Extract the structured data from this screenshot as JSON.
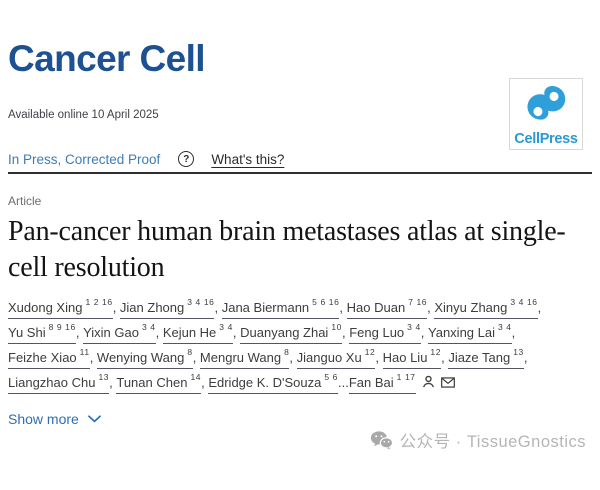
{
  "masthead": {
    "journal_title": "Cancer Cell",
    "available_online": "Available online 10 April 2025",
    "publisher": {
      "name": "CellPress"
    }
  },
  "status_bar": {
    "status": "In Press, Corrected Proof",
    "help_icon_glyph": "?",
    "help_link": "What's this?"
  },
  "article": {
    "type_label": "Article",
    "title": "Pan-cancer human brain metastases atlas at single-cell resolution",
    "show_more": "Show more"
  },
  "authors": {
    "lines": [
      [
        {
          "name": "Xudong Xing",
          "sup": "1 2 16",
          "sep": ", "
        },
        {
          "name": "Jian Zhong",
          "sup": "3 4 16",
          "sep": ", "
        },
        {
          "name": "Jana Biermann",
          "sup": "5 6 16",
          "sep": ", "
        },
        {
          "name": "Hao Duan",
          "sup": "7 16",
          "sep": ", "
        },
        {
          "name": "Xinyu Zhang",
          "sup": "3 4 16",
          "sep": ","
        }
      ],
      [
        {
          "name": "Yu Shi",
          "sup": "8 9 16",
          "sep": ", "
        },
        {
          "name": "Yixin Gao",
          "sup": "3 4",
          "sep": ", "
        },
        {
          "name": "Kejun He",
          "sup": "3 4",
          "sep": ", "
        },
        {
          "name": "Duanyang Zhai",
          "sup": "10",
          "sep": ", "
        },
        {
          "name": "Feng Luo",
          "sup": "3 4",
          "sep": ", "
        },
        {
          "name": "Yanxing Lai",
          "sup": "3 4",
          "sep": ","
        }
      ],
      [
        {
          "name": "Feizhe Xiao",
          "sup": "11",
          "sep": ", "
        },
        {
          "name": "Wenying Wang",
          "sup": "8",
          "sep": ", "
        },
        {
          "name": "Mengru Wang",
          "sup": "8",
          "sep": ", "
        },
        {
          "name": "Jianguo Xu",
          "sup": "12",
          "sep": ", "
        },
        {
          "name": "Hao Liu",
          "sup": "12",
          "sep": ", "
        },
        {
          "name": "Jiaze Tang",
          "sup": "13",
          "sep": ","
        }
      ],
      [
        {
          "name": "Liangzhao Chu",
          "sup": "13",
          "sep": ", "
        },
        {
          "name": "Tunan Chen",
          "sup": "14",
          "sep": ", "
        },
        {
          "name": "Edridge K. D'Souza",
          "sup": "5 6",
          "sep": "..."
        },
        {
          "name": "Fan Bai",
          "sup": "1 17",
          "sep": "",
          "icons": [
            "person",
            "envelope"
          ]
        }
      ]
    ]
  },
  "watermark": {
    "text": "公众号 · TissueGnostics"
  },
  "colors": {
    "journal_navy": "#1e5191",
    "cellpress_blue": "#2a9ad2",
    "status_blue": "#3f7cb5",
    "link_blue": "#2f6eb3",
    "watermark_gray": "#b5b5b5"
  }
}
